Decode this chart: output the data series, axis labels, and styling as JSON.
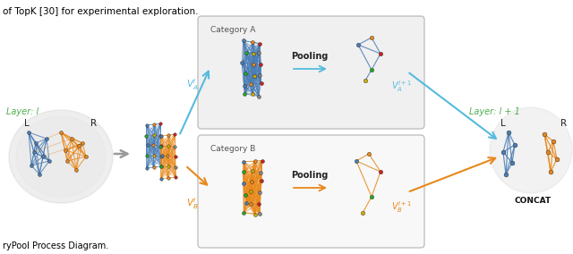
{
  "title_top": "of TopK [30] for experimental exploration.",
  "caption_bottom": "ryPool Process Diagram.",
  "bg_color": "#ffffff",
  "layer_l_label": "Layer: l",
  "layer_l1_label": "Layer: l + 1",
  "cat_a_label": "Category A",
  "cat_b_label": "Category B",
  "pooling_label": "Pooling",
  "concat_label": "CONCAT",
  "blue_color": "#4A7DB5",
  "orange_color": "#E8881A",
  "green_color": "#4CAF50",
  "arrow_blue": "#55BBDD",
  "arrow_orange": "#E8881A",
  "arrow_gray": "#999999",
  "node_colors": [
    "#4A7DB5",
    "#E8881A",
    "#CC2222",
    "#22AA22",
    "#CCAA00",
    "#888888"
  ],
  "box_bg": "#f2f2f2",
  "box_ec": "#aaaaaa"
}
